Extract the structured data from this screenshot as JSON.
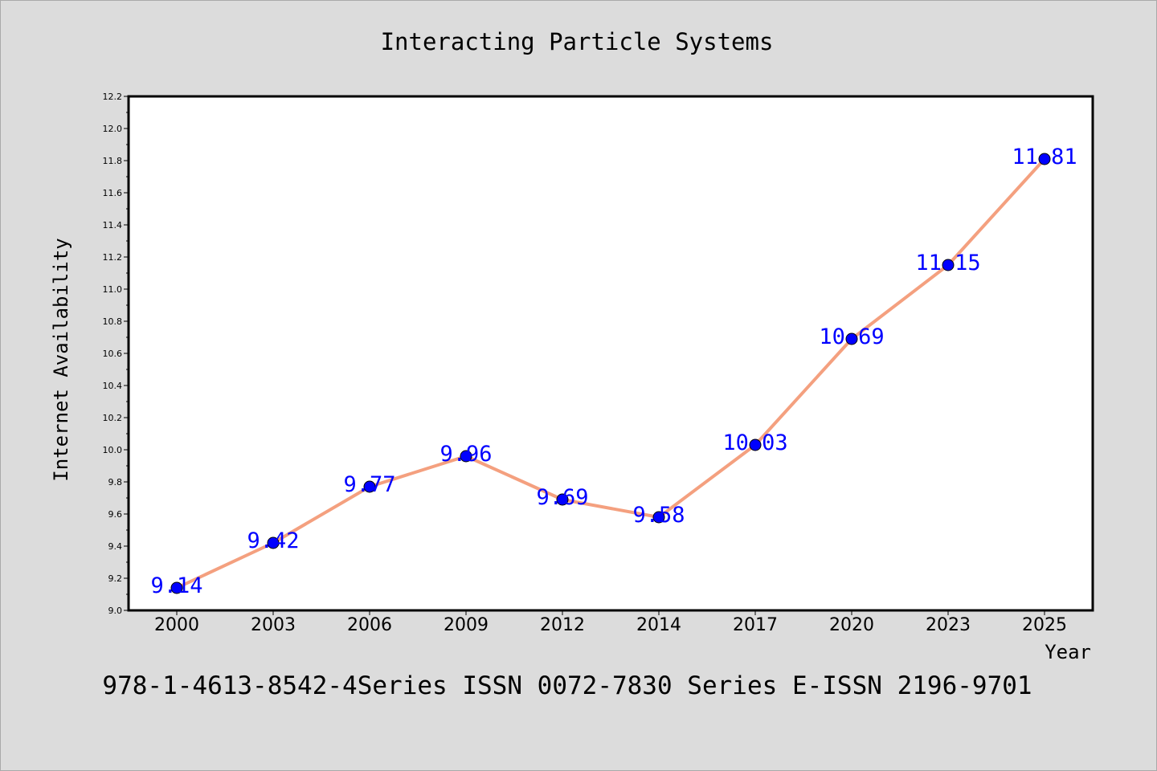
{
  "chart_data": {
    "type": "line",
    "title": "Interacting Particle Systems",
    "xlabel": "Year",
    "ylabel": "Internet Availability",
    "categories": [
      "2000",
      "2003",
      "2006",
      "2009",
      "2012",
      "2014",
      "2017",
      "2020",
      "2023",
      "2025"
    ],
    "series": [
      {
        "values": [
          9.14,
          9.42,
          9.77,
          9.96,
          9.69,
          9.58,
          10.03,
          10.69,
          11.15,
          11.81
        ],
        "labels": [
          "9.14",
          "9.42",
          "9.77",
          "9.96",
          "9.69",
          "9.58",
          "10.03",
          "10.69",
          "11.15",
          "11.81"
        ],
        "line_color": "#f4a07f",
        "marker_color": "#0000ff",
        "label_color": "#0000ff"
      }
    ],
    "ylim": [
      9.0,
      12.2
    ],
    "yticks": [
      "9.0",
      "9.2",
      "9.4",
      "9.6",
      "9.8",
      "10.0",
      "10.2",
      "10.4",
      "10.6",
      "10.8",
      "11.0",
      "11.2",
      "11.4",
      "11.6",
      "11.8",
      "12.0",
      "12.2"
    ],
    "grid": false,
    "legend": "none",
    "caption": "978-1-4613-8542-4Series ISSN 0072-7830 Series E-ISSN 2196-9701",
    "background_color": "#dcdcdc",
    "plot_background_color": "#ffffff"
  }
}
